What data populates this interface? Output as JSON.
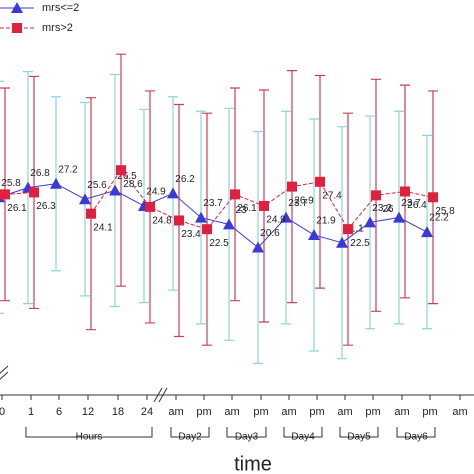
{
  "chart_data": {
    "type": "line",
    "x_label": "time",
    "categories": [
      "0",
      "1",
      "6",
      "12",
      "18",
      "24",
      "am",
      "pm",
      "am",
      "pm",
      "am",
      "pm",
      "am",
      "pm",
      "am",
      "pm",
      "am"
    ],
    "groups": [
      "Hours",
      "Day2",
      "Day3",
      "Day4",
      "Day5",
      "Day6"
    ],
    "ylim": [
      10,
      40
    ],
    "series": [
      {
        "name": "mrs<=2",
        "color": "#3a3ad6",
        "error_color": "#8fd3e0",
        "values": [
          25.8,
          26.8,
          27.2,
          25.6,
          26.5,
          24.9,
          26.2,
          23.7,
          23.0,
          20.6,
          23.7,
          21.9,
          21.1,
          23.2,
          23.7,
          22.2,
          null
        ],
        "errors": [
          12,
          12,
          9,
          10,
          12,
          10,
          10,
          11,
          12,
          12,
          11,
          12,
          12,
          11,
          11,
          10,
          null
        ]
      },
      {
        "name": "mrs>2",
        "color": "#e0203f",
        "error_color": "#c8405a",
        "values": [
          26.1,
          26.3,
          null,
          24.1,
          28.6,
          24.8,
          23.4,
          22.5,
          26.1,
          24.9,
          26.9,
          27.4,
          22.5,
          26.0,
          26.4,
          25.8,
          null
        ],
        "errors": [
          11,
          12,
          null,
          12,
          12,
          12,
          12,
          12,
          11,
          12,
          12,
          11,
          12,
          12,
          11,
          11,
          null
        ]
      }
    ]
  }
}
